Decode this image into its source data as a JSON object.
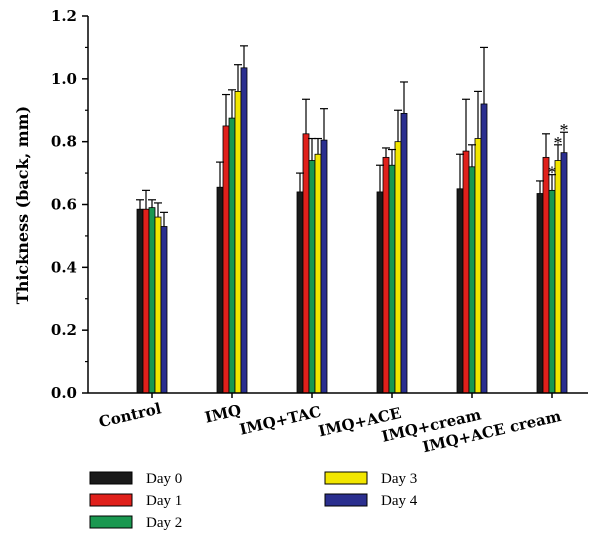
{
  "chart_data": {
    "type": "bar",
    "ylabel": "Thickness (back, mm)",
    "xlabel": "",
    "ylim": [
      0.0,
      1.2
    ],
    "yticks": [
      "0.0",
      "0.2",
      "0.4",
      "0.6",
      "0.8",
      "1.0",
      "1.2"
    ],
    "grid": false,
    "legend_position": "bottom",
    "categories": [
      "Control",
      "IMQ",
      "IMQ+TAC",
      "IMQ+ACE",
      "IMQ+cream",
      "IMQ+ACE cream"
    ],
    "series": [
      {
        "name": "Day 0",
        "color": "#1a1a1a",
        "values": [
          0.585,
          0.655,
          0.64,
          0.64,
          0.65,
          0.635
        ],
        "errors": [
          0.03,
          0.08,
          0.06,
          0.085,
          0.11,
          0.04
        ]
      },
      {
        "name": "Day 1",
        "color": "#e0201b",
        "values": [
          0.585,
          0.85,
          0.825,
          0.75,
          0.77,
          0.75
        ],
        "errors": [
          0.06,
          0.1,
          0.11,
          0.03,
          0.165,
          0.075
        ]
      },
      {
        "name": "Day 2",
        "color": "#1a9850",
        "values": [
          0.59,
          0.875,
          0.74,
          0.725,
          0.72,
          0.645
        ],
        "errors": [
          0.025,
          0.09,
          0.07,
          0.05,
          0.07,
          0.05
        ]
      },
      {
        "name": "Day 3",
        "color": "#f2e600",
        "values": [
          0.56,
          0.96,
          0.76,
          0.8,
          0.81,
          0.74
        ],
        "errors": [
          0.045,
          0.085,
          0.05,
          0.1,
          0.15,
          0.05
        ]
      },
      {
        "name": "Day 4",
        "color": "#2b2f8f",
        "values": [
          0.53,
          1.035,
          0.805,
          0.89,
          0.92,
          0.765
        ],
        "errors": [
          0.045,
          0.07,
          0.1,
          0.1,
          0.18,
          0.065
        ]
      }
    ],
    "annotations": [
      {
        "text": "*",
        "category": "IMQ+ACE cream",
        "series": "Day 2"
      },
      {
        "text": "*",
        "category": "IMQ+ACE cream",
        "series": "Day 3"
      },
      {
        "text": "*",
        "category": "IMQ+ACE cream",
        "series": "Day 4"
      }
    ]
  }
}
